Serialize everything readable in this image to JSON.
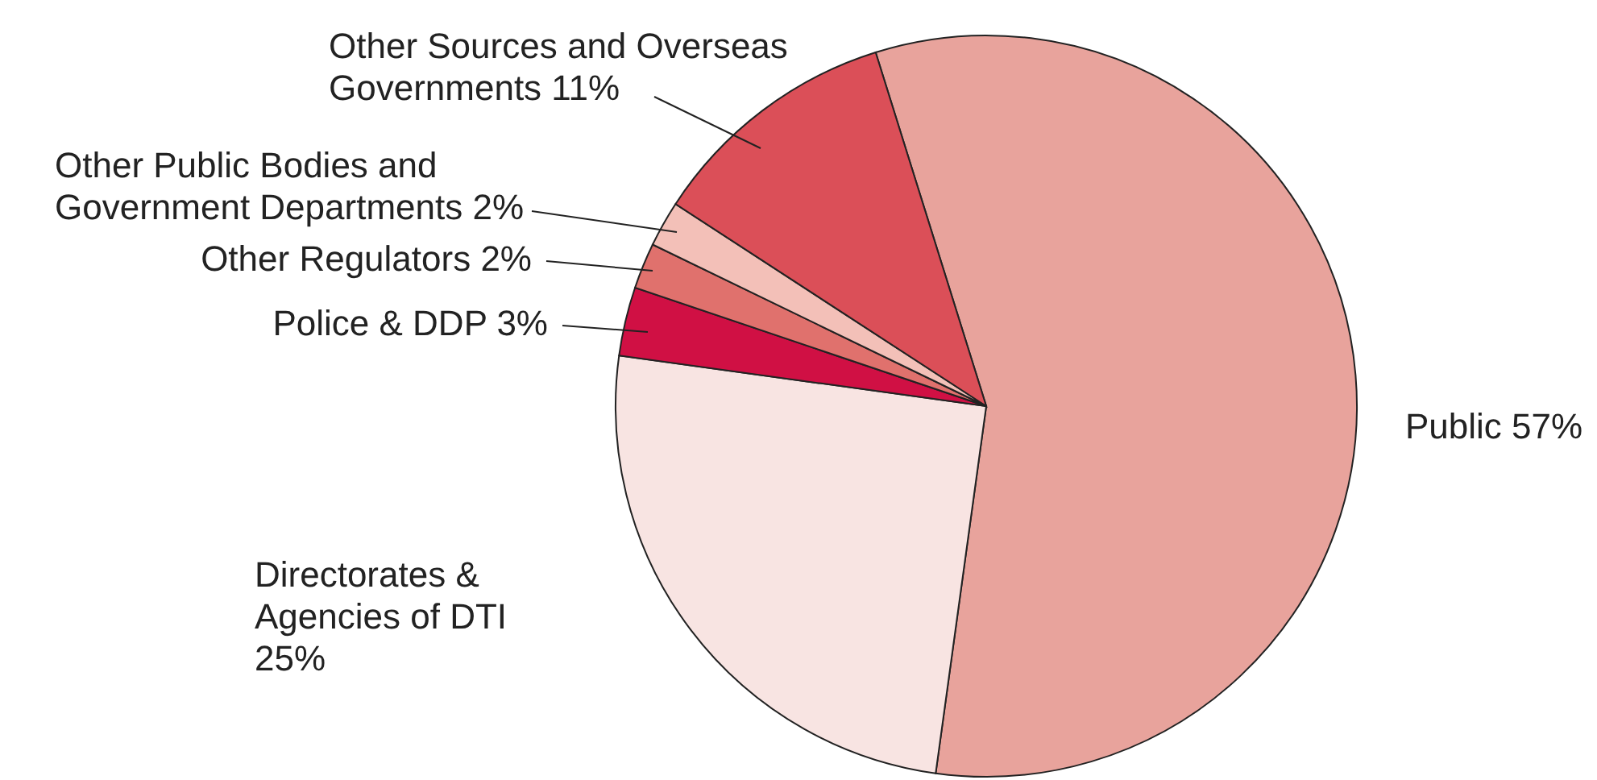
{
  "chart_data": {
    "type": "pie",
    "categories": [
      "Public",
      "Directorates & Agencies of DTI",
      "Police & DDP",
      "Other Regulators",
      "Other Public Bodies and Government Departments",
      "Other Sources and Overseas Governments"
    ],
    "values": [
      57,
      25,
      3,
      2,
      2,
      11
    ],
    "value_labels": [
      "57%",
      "25%",
      "3%",
      "2%",
      "2%",
      "11%"
    ],
    "colors": [
      "#e8a39c",
      "#f8e4e2",
      "#d01044",
      "#e0716d",
      "#f3c0b8",
      "#db4f58"
    ]
  }
}
